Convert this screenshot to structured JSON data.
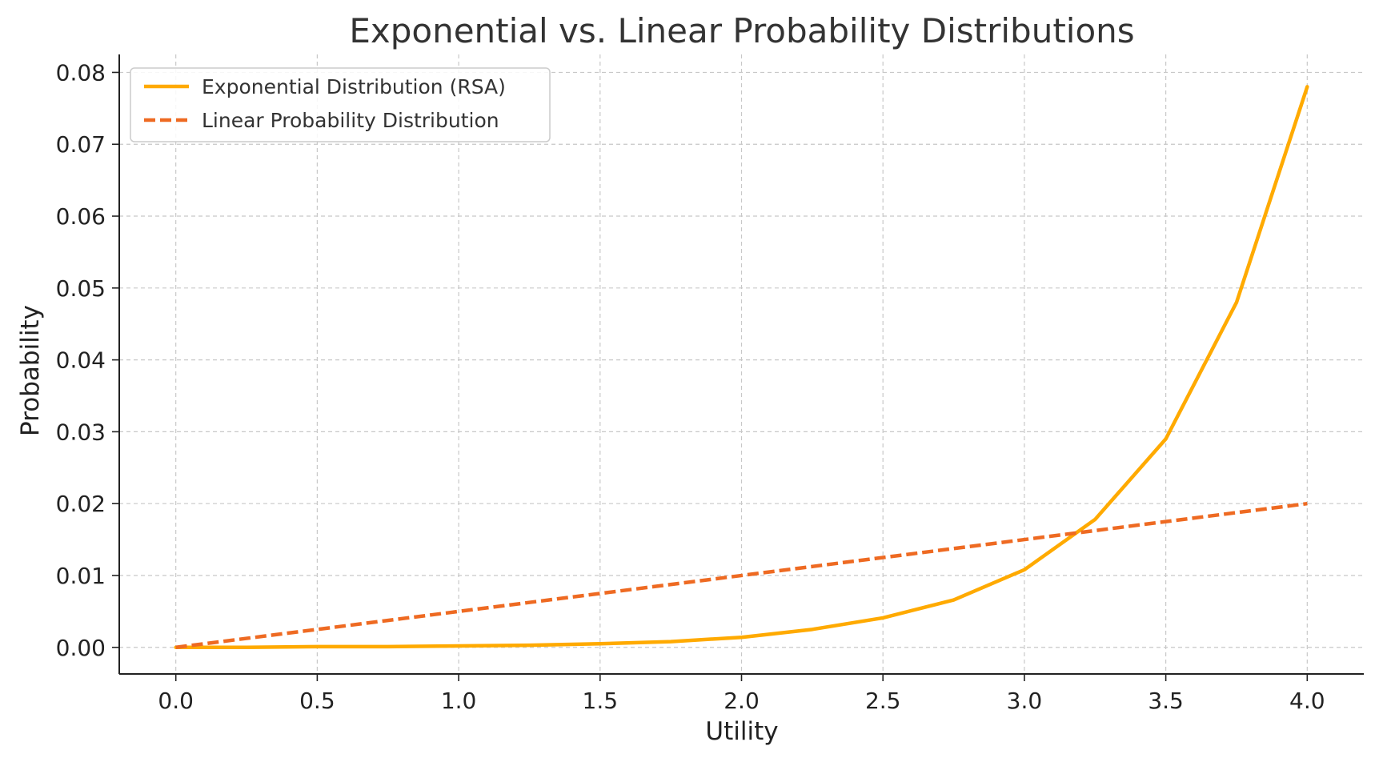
{
  "chart_data": {
    "type": "line",
    "title": "Exponential vs. Linear Probability Distributions",
    "xlabel": "Utility",
    "ylabel": "Probability",
    "xlim": [
      -0.2,
      4.2
    ],
    "ylim": [
      -0.0037,
      0.0825
    ],
    "x_ticks": [
      "0.0",
      "0.5",
      "1.0",
      "1.5",
      "2.0",
      "2.5",
      "3.0",
      "3.5",
      "4.0"
    ],
    "y_ticks": [
      "0.00",
      "0.01",
      "0.02",
      "0.03",
      "0.04",
      "0.05",
      "0.06",
      "0.07",
      "0.08"
    ],
    "grid": true,
    "legend_position": "top-left",
    "series": [
      {
        "name": "Exponential Distribution (RSA)",
        "style": "solid",
        "color": "#FFAA00",
        "x": [
          0.0,
          0.25,
          0.5,
          0.75,
          1.0,
          1.25,
          1.5,
          1.75,
          2.0,
          2.25,
          2.5,
          2.75,
          3.0,
          3.25,
          3.5,
          3.75,
          4.0
        ],
        "y": [
          0.0,
          0.0,
          0.0001,
          0.0001,
          0.0002,
          0.0003,
          0.0005,
          0.0008,
          0.0014,
          0.0025,
          0.0041,
          0.0066,
          0.0108,
          0.0178,
          0.029,
          0.048,
          0.078
        ]
      },
      {
        "name": "Linear Probability Distribution",
        "style": "dashed",
        "color": "#EE6A22",
        "x": [
          0.0,
          4.0
        ],
        "y": [
          0.0,
          0.02
        ]
      }
    ]
  }
}
